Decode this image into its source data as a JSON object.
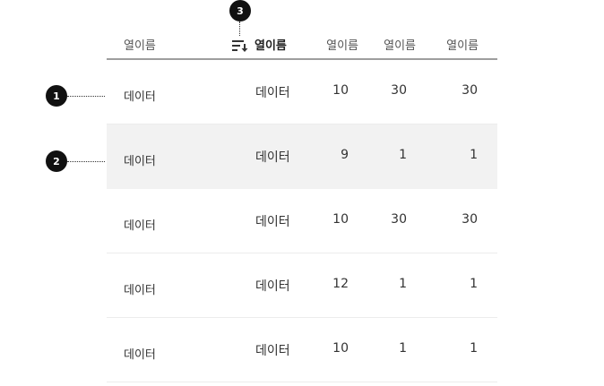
{
  "table": {
    "columns": [
      {
        "label": "열이름",
        "sorted": false
      },
      {
        "label": "열이름",
        "sorted": true,
        "sort_icon": "sort-descending-icon"
      },
      {
        "label": "열이름",
        "sorted": false
      },
      {
        "label": "열이름",
        "sorted": false
      },
      {
        "label": "열이름",
        "sorted": false
      }
    ],
    "rows": [
      {
        "cells": [
          "데이터",
          "데이터",
          "10",
          "30",
          "30"
        ],
        "selected": false
      },
      {
        "cells": [
          "데이터",
          "데이터",
          "9",
          "1",
          "1"
        ],
        "selected": true
      },
      {
        "cells": [
          "데이터",
          "데이터",
          "10",
          "30",
          "30"
        ],
        "selected": false
      },
      {
        "cells": [
          "데이터",
          "데이터",
          "12",
          "1",
          "1"
        ],
        "selected": false
      },
      {
        "cells": [
          "데이터",
          "데이터",
          "10",
          "1",
          "1"
        ],
        "selected": false
      }
    ]
  },
  "annotations": [
    {
      "number": "1",
      "target": "row"
    },
    {
      "number": "2",
      "target": "selected-row"
    },
    {
      "number": "3",
      "target": "sort-indicator"
    }
  ],
  "colors": {
    "selected_row_bg": "#f2f2f2",
    "header_border": "#9e9e9e",
    "marker_bg": "#111111"
  }
}
